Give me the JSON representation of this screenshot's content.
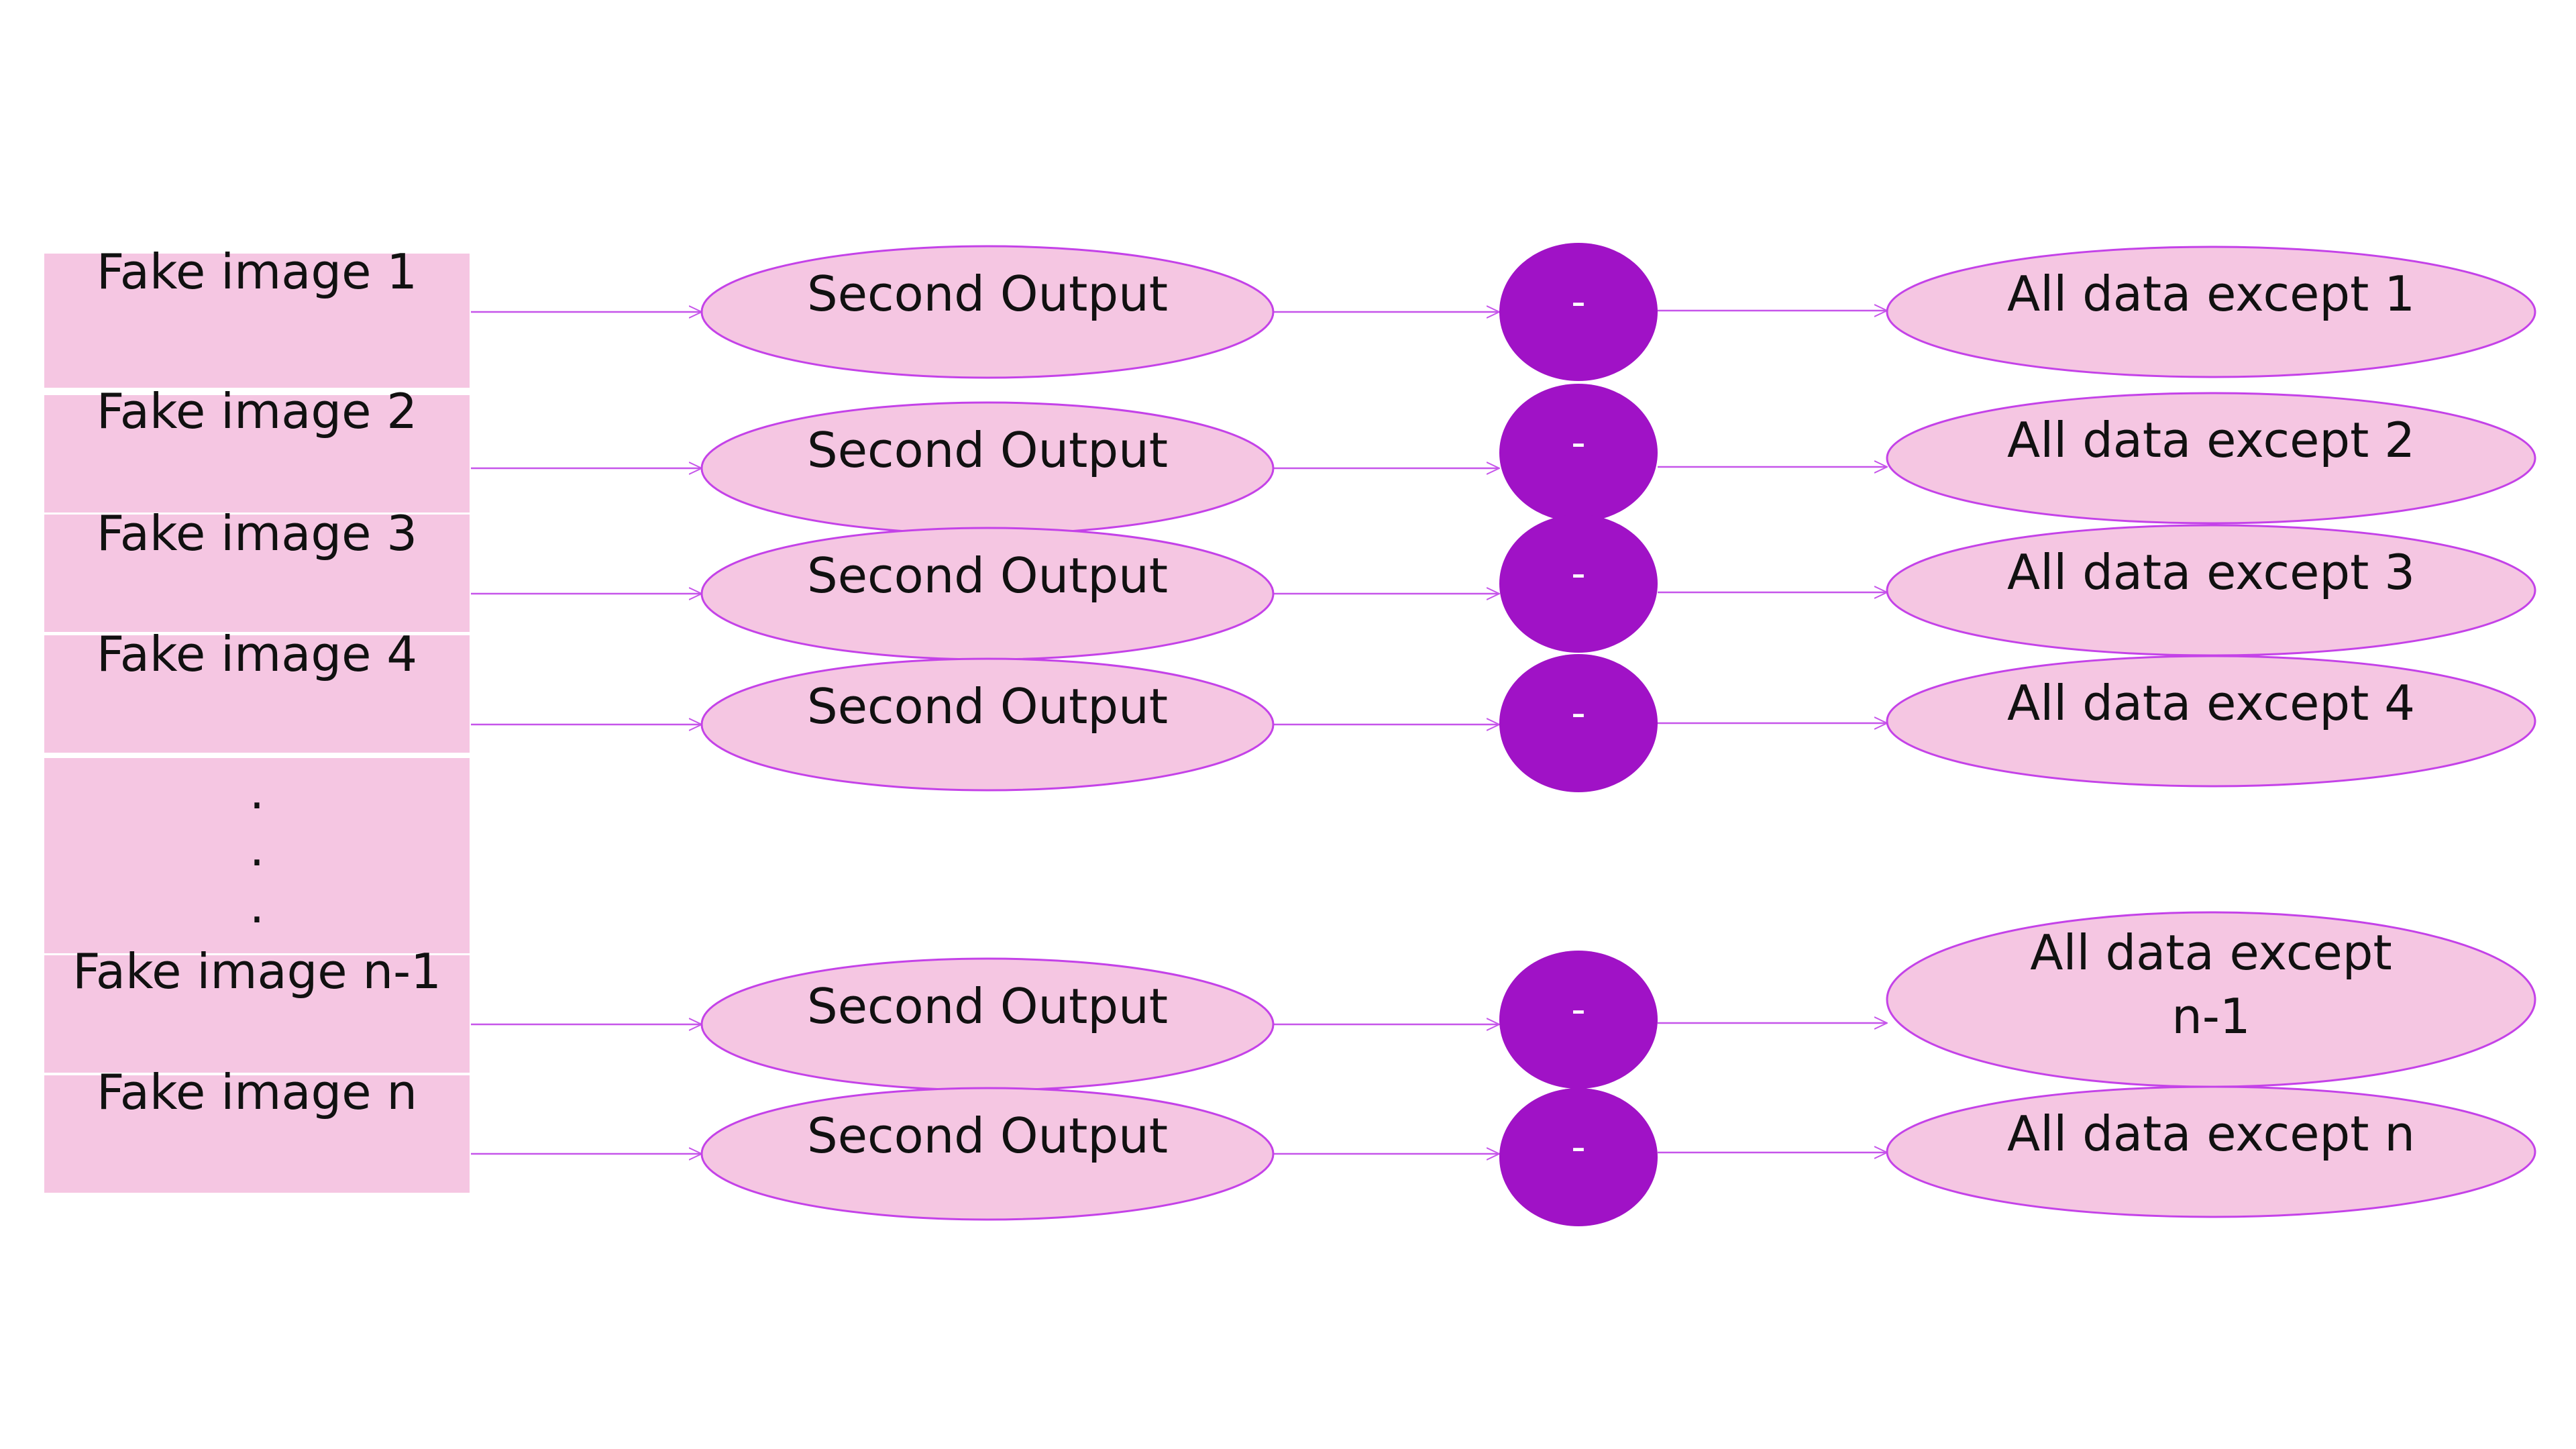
{
  "colors": {
    "box_fill": "#f5c6e2",
    "ellipse_fill": "#f5c6e2",
    "ellipse_stroke": "#c442e8",
    "circle_fill": "#a012c6",
    "arrow": "#c655ea",
    "text": "#111111",
    "circle_text": "#ffffff",
    "background": "#ffffff"
  },
  "rows": [
    {
      "input": "Fake image 1",
      "process": "Second Output",
      "op": "-",
      "output": [
        "All data except 1"
      ]
    },
    {
      "input": "Fake image 2",
      "process": "Second Output",
      "op": "-",
      "output": [
        "All data except 2"
      ]
    },
    {
      "input": "Fake image 3",
      "process": "Second Output",
      "op": "-",
      "output": [
        "All data except 3"
      ]
    },
    {
      "input": "Fake image 4",
      "process": "Second Output",
      "op": "-",
      "output": [
        "All data except 4"
      ]
    },
    {
      "input": "Fake image n-1",
      "process": "Second Output",
      "op": "-",
      "output": [
        "All data except",
        "n-1"
      ]
    },
    {
      "input": "Fake image n",
      "process": "Second Output",
      "op": "-",
      "output": [
        "All data except n"
      ]
    }
  ],
  "ellipsis": [
    ".",
    ".",
    "."
  ]
}
